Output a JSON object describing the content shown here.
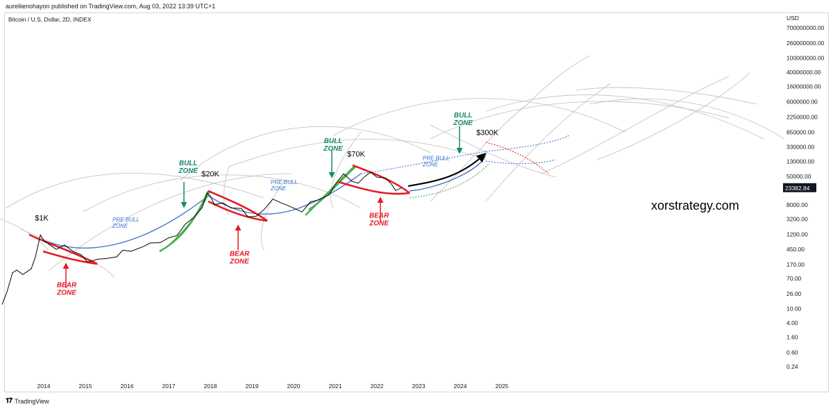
{
  "header": {
    "published_line": "aureliienohayon published on TradingView.com, Aug 03, 2022 13:39 UTC+1"
  },
  "symbol": "Bitcoin / U.S. Dollar, 2D, INDEX",
  "footer": {
    "brand": "TradingView",
    "logo": "tv-logo-icon"
  },
  "watermark": "xorstrategy.com",
  "colors": {
    "price": "#000000",
    "bear": "#e31b23",
    "bull": "#4caf50",
    "prebull": "#4472ca",
    "guide": "#bdbdbd",
    "label_bear": "#e31b23",
    "label_bull": "#148a6c",
    "label_prebull": "#3b6fd4",
    "price_badge_bg": "#131722"
  },
  "chart_data": {
    "type": "line",
    "scale": "log",
    "currency_label": "USD",
    "current_price": "23382.84",
    "x_ticks": [
      "2014",
      "2015",
      "2016",
      "2017",
      "2018",
      "2019",
      "2020",
      "2021",
      "2022",
      "2023",
      "2024",
      "2025"
    ],
    "y_ticks": [
      "700000000.00",
      "260000000.00",
      "100000000.00",
      "40000000.00",
      "16000000.00",
      "6000000.00",
      "2250000.00",
      "850000.00",
      "330000.00",
      "130000.00",
      "50000.00",
      "8000.00",
      "3200.00",
      "1200.00",
      "450.00",
      "170.00",
      "70.00",
      "26.00",
      "10.00",
      "4.00",
      "1.60",
      "0.60",
      "0.24"
    ],
    "y_tick_values": [
      700000000,
      260000000,
      100000000,
      40000000,
      16000000,
      6000000,
      2250000,
      850000,
      330000,
      130000,
      50000,
      8000,
      3200,
      1200,
      450,
      170,
      70,
      26,
      10,
      4,
      1.6,
      0.6,
      0.24
    ],
    "price_series": [
      [
        2013.0,
        13
      ],
      [
        2013.12,
        30
      ],
      [
        2013.25,
        100
      ],
      [
        2013.35,
        120
      ],
      [
        2013.5,
        90
      ],
      [
        2013.7,
        130
      ],
      [
        2013.8,
        280
      ],
      [
        2013.92,
        1150
      ],
      [
        2014.0,
        800
      ],
      [
        2014.15,
        600
      ],
      [
        2014.3,
        450
      ],
      [
        2014.5,
        600
      ],
      [
        2014.7,
        400
      ],
      [
        2014.9,
        320
      ],
      [
        2015.05,
        200
      ],
      [
        2015.3,
        240
      ],
      [
        2015.5,
        250
      ],
      [
        2015.75,
        280
      ],
      [
        2015.9,
        430
      ],
      [
        2016.1,
        400
      ],
      [
        2016.4,
        550
      ],
      [
        2016.55,
        680
      ],
      [
        2016.8,
        700
      ],
      [
        2017.0,
        950
      ],
      [
        2017.2,
        1100
      ],
      [
        2017.4,
        2300
      ],
      [
        2017.6,
        3500
      ],
      [
        2017.8,
        6500
      ],
      [
        2017.92,
        17000
      ],
      [
        2018.0,
        14000
      ],
      [
        2018.1,
        8000
      ],
      [
        2018.3,
        9000
      ],
      [
        2018.5,
        6500
      ],
      [
        2018.75,
        6300
      ],
      [
        2018.9,
        3700
      ],
      [
        2019.1,
        3800
      ],
      [
        2019.3,
        6000
      ],
      [
        2019.5,
        11500
      ],
      [
        2019.7,
        9000
      ],
      [
        2019.9,
        7300
      ],
      [
        2020.2,
        5000
      ],
      [
        2020.4,
        9500
      ],
      [
        2020.6,
        11000
      ],
      [
        2020.85,
        15000
      ],
      [
        2021.0,
        30000
      ],
      [
        2021.2,
        58000
      ],
      [
        2021.4,
        36000
      ],
      [
        2021.55,
        32000
      ],
      [
        2021.7,
        48000
      ],
      [
        2021.85,
        65000
      ],
      [
        2022.0,
        47000
      ],
      [
        2022.2,
        45000
      ],
      [
        2022.35,
        30000
      ],
      [
        2022.45,
        20000
      ],
      [
        2022.58,
        23382
      ]
    ],
    "annotations": [
      {
        "text": "$1K",
        "x": 2013.95,
        "y": 2900
      },
      {
        "text": "$20K",
        "x": 2018.0,
        "y": 50000
      },
      {
        "text": "$70K",
        "x": 2021.5,
        "y": 175000
      },
      {
        "text": "$300K",
        "x": 2024.65,
        "y": 700000
      },
      {
        "text": "BULL ZONE",
        "kind": "bull",
        "x": 2017.47,
        "y": 100000
      },
      {
        "text": "BULL ZONE",
        "kind": "bull",
        "x": 2020.95,
        "y": 420000
      },
      {
        "text": "BULL ZONE",
        "kind": "bull",
        "x": 2024.07,
        "y": 2200000
      },
      {
        "text": "BEAR ZONE",
        "kind": "bear",
        "x": 2014.55,
        "y": 40
      },
      {
        "text": "BEAR ZONE",
        "kind": "bear",
        "x": 2018.7,
        "y": 300
      },
      {
        "text": "BEAR ZONE",
        "kind": "bear",
        "x": 2022.05,
        "y": 3500
      },
      {
        "text": "PRE BULL ZONE",
        "kind": "prebull",
        "x": 2015.65,
        "y": 2700
      },
      {
        "text": "PRE BULL ZONE",
        "kind": "prebull",
        "x": 2019.45,
        "y": 30000
      },
      {
        "text": "PRE BULL ZONE",
        "kind": "prebull",
        "x": 2023.1,
        "y": 140000
      }
    ]
  }
}
